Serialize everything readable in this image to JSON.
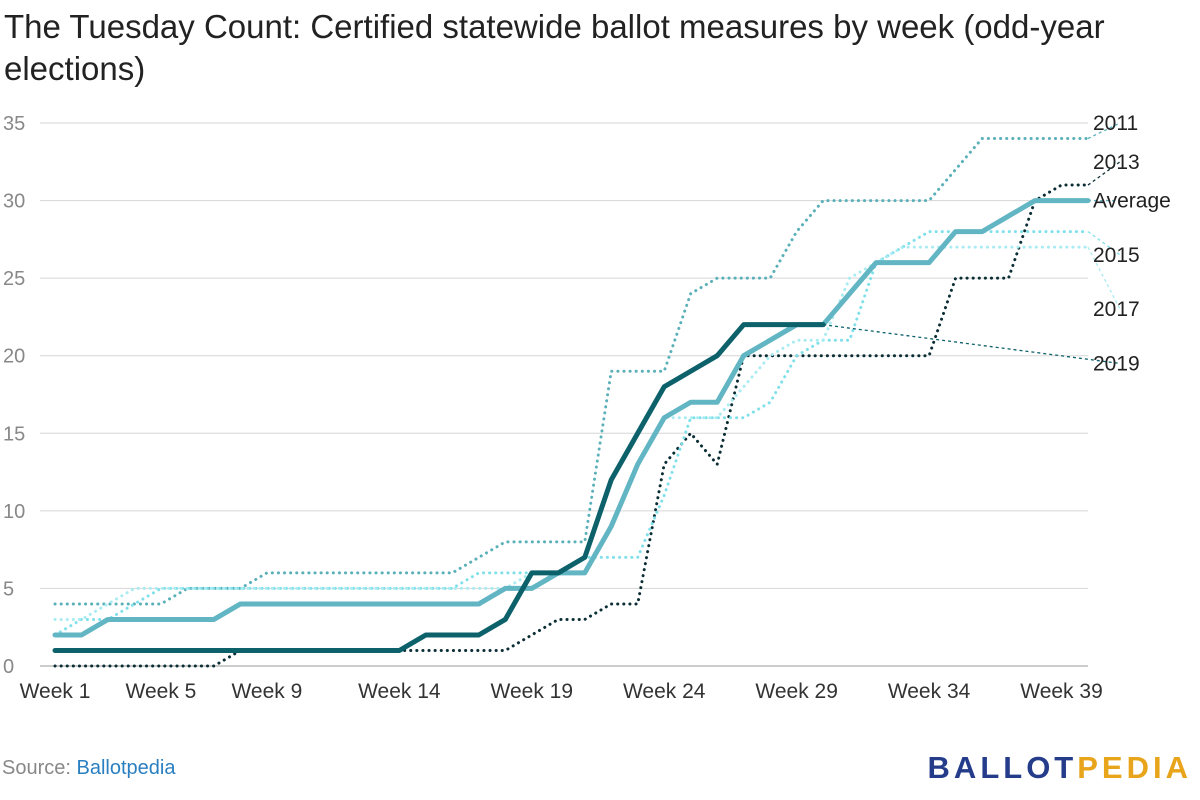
{
  "title": "The Tuesday Count: Certified statewide ballot measures by week (odd-year elections)",
  "source": {
    "label": "Source:",
    "name": "Ballotpedia"
  },
  "logo": {
    "part1": "BALLOT",
    "part2": "PEDIA"
  },
  "chart_data": {
    "type": "line",
    "title": "The Tuesday Count: Certified statewide ballot measures by week (odd-year elections)",
    "xlabel": "",
    "ylabel": "",
    "x": [
      1,
      2,
      3,
      4,
      5,
      6,
      7,
      8,
      9,
      10,
      11,
      12,
      13,
      14,
      15,
      16,
      17,
      18,
      19,
      20,
      21,
      22,
      23,
      24,
      25,
      26,
      27,
      28,
      29,
      30,
      31,
      32,
      33,
      34,
      35,
      36,
      37,
      38,
      39,
      40
    ],
    "xticks": [
      1,
      5,
      9,
      14,
      19,
      24,
      29,
      34,
      39
    ],
    "xtick_labels": [
      "Week 1",
      "Week 5",
      "Week 9",
      "Week 14",
      "Week 19",
      "Week 24",
      "Week 29",
      "Week 34",
      "Week 39"
    ],
    "ylim": [
      0,
      35
    ],
    "yticks": [
      0,
      5,
      10,
      15,
      20,
      25,
      30,
      35
    ],
    "grid": true,
    "legend": "labels at right end of each line",
    "series": [
      {
        "name": "2011",
        "color": "#5ab0b8",
        "style": "dotted",
        "values": [
          4,
          4,
          4,
          4,
          4,
          5,
          5,
          5,
          6,
          6,
          6,
          6,
          6,
          6,
          6,
          6,
          7,
          8,
          8,
          8,
          8,
          19,
          19,
          19,
          24,
          25,
          25,
          25,
          28,
          30,
          30,
          30,
          30,
          30,
          32,
          34,
          34,
          34,
          34,
          34
        ],
        "end_value": 35
      },
      {
        "name": "2013",
        "color": "#0b2e35",
        "style": "dotted",
        "values": [
          0,
          0,
          0,
          0,
          0,
          0,
          0,
          1,
          1,
          1,
          1,
          1,
          1,
          1,
          1,
          1,
          1,
          1,
          2,
          3,
          3,
          4,
          4,
          13,
          15,
          13,
          20,
          20,
          20,
          20,
          20,
          20,
          20,
          20,
          25,
          25,
          25,
          30,
          31,
          31
        ],
        "end_value": 32.5
      },
      {
        "name": "Average",
        "color": "#62b5c3",
        "style": "solid",
        "values": [
          2,
          2,
          3,
          3,
          3,
          3,
          3,
          4,
          4,
          4,
          4,
          4,
          4,
          4,
          4,
          4,
          4,
          5,
          5,
          6,
          6,
          9,
          13,
          16,
          17,
          17,
          20,
          21,
          22,
          22,
          24,
          26,
          26,
          26,
          28,
          28,
          29,
          30,
          30,
          30
        ],
        "end_value": 30
      },
      {
        "name": "2015",
        "color": "#80e0ea",
        "style": "dotted",
        "values": [
          2,
          3,
          3,
          4,
          5,
          5,
          5,
          5,
          5,
          5,
          5,
          5,
          5,
          5,
          5,
          5,
          6,
          6,
          6,
          6,
          7,
          7,
          7,
          11,
          16,
          16,
          16,
          17,
          20,
          21,
          21,
          26,
          27,
          28,
          28,
          28,
          28,
          28,
          28,
          28
        ],
        "end_value": 26.5
      },
      {
        "name": "2017",
        "color": "#a8ecf2",
        "style": "dotted",
        "values": [
          3,
          3,
          4,
          5,
          5,
          5,
          5,
          5,
          5,
          5,
          5,
          5,
          5,
          5,
          5,
          5,
          5,
          5,
          6,
          6,
          6,
          9,
          13,
          16,
          16,
          16,
          18,
          20,
          21,
          21,
          25,
          26,
          27,
          27,
          27,
          27,
          27,
          27,
          27,
          27
        ],
        "end_value": 23
      },
      {
        "name": "2019",
        "color": "#0d616b",
        "style": "solid",
        "values": [
          1,
          1,
          1,
          1,
          1,
          1,
          1,
          1,
          1,
          1,
          1,
          1,
          1,
          1,
          2,
          2,
          2,
          3,
          6,
          6,
          7,
          12,
          15,
          18,
          19,
          20,
          22,
          22,
          22,
          22,
          null,
          null,
          null,
          null,
          null,
          null,
          null,
          null,
          null,
          null
        ],
        "end_value": 19.5
      }
    ]
  }
}
